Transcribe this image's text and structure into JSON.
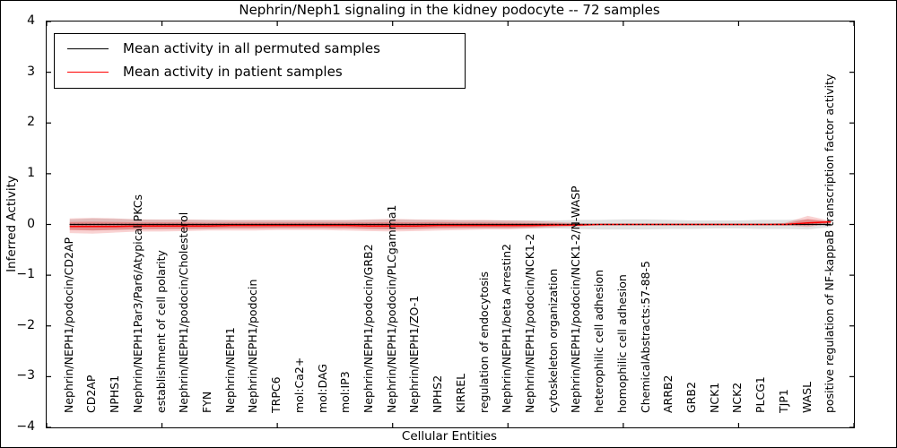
{
  "title": "Nephrin/Neph1 signaling in the kidney podocyte -- 72 samples",
  "legend": {
    "position": "upper left",
    "entries": [
      {
        "label": "Mean activity in all permuted samples",
        "color": "#000000"
      },
      {
        "label": "Mean activity in patient samples",
        "color": "#ff0000"
      }
    ]
  },
  "chart_data": {
    "type": "line",
    "title": "Nephrin/Neph1 signaling in the kidney podocyte -- 72 samples",
    "xlabel": "Cellular Entities",
    "ylabel": "Inferred Activity",
    "xlim": [
      0,
      35
    ],
    "ylim": [
      -4,
      4
    ],
    "grid": false,
    "xticks": [
      0,
      5,
      10,
      15,
      20,
      25,
      30,
      35
    ],
    "yticks": [
      {
        "label": "4",
        "value": 4
      },
      {
        "label": "3",
        "value": 3
      },
      {
        "label": "2",
        "value": 2
      },
      {
        "label": "1",
        "value": 1
      },
      {
        "label": "0",
        "value": 0
      },
      {
        "label": "−1",
        "value": -1
      },
      {
        "label": "−2",
        "value": -2
      },
      {
        "label": "−3",
        "value": -3
      },
      {
        "label": "−4",
        "value": -4
      }
    ],
    "zero_line": {
      "style": "dotted",
      "color": "#000000",
      "y": 0
    },
    "categories": [
      "Nephrin/NEPH1/podocin/CD2AP",
      "CD2AP",
      "NPHS1",
      "Nephrin/NEPH1Par3/Par6/Atypical PKCs",
      "establishment of cell polarity",
      "Nephrin/NEPH1/podocin/Cholesterol",
      "FYN",
      "Nephrin/NEPH1",
      "Nephrin/NEPH1/podocin",
      "TRPC6",
      "mol:Ca2+",
      "mol:DAG",
      "mol:IP3",
      "Nephrin/NEPH1/podocin/GRB2",
      "Nephrin/NEPH1/podocin/PLCgamma1",
      "Nephrin/NEPH1/ZO-1",
      "NPHS2",
      "KIRREL",
      "regulation of endocytosis",
      "Nephrin/NEPH1/beta Arrestin2",
      "Nephrin/NEPH1/podocin/NCK1-2",
      "cytoskeleton organization",
      "Nephrin/NEPH1/podocin/NCK1-2/N-WASP",
      "heterophilic cell adhesion",
      "homophilic cell adhesion",
      "ChemicalAbstracts:57-88-5",
      "ARRB2",
      "GRB2",
      "NCK1",
      "NCK2",
      "PLCG1",
      "TJP1",
      "WASL",
      "positive regulation of NF-kappaB transcription factor activity"
    ],
    "series": [
      {
        "name": "Mean activity in all permuted samples",
        "color": "#000000",
        "values": [
          0,
          0,
          0,
          0,
          0,
          0,
          0,
          0,
          0,
          0,
          0,
          0,
          0,
          0,
          0,
          0,
          0,
          0,
          0,
          0,
          0,
          0,
          0,
          0,
          0,
          0,
          0,
          0,
          0,
          0,
          0,
          0,
          0,
          0
        ]
      },
      {
        "name": "Mean activity in patient samples",
        "color": "#ff0000",
        "values": [
          -0.04,
          -0.04,
          -0.04,
          -0.03,
          -0.03,
          -0.03,
          -0.03,
          -0.02,
          -0.02,
          -0.02,
          -0.02,
          -0.02,
          -0.02,
          -0.03,
          -0.03,
          -0.03,
          -0.02,
          -0.02,
          -0.02,
          -0.02,
          -0.02,
          -0.01,
          -0.01,
          0.0,
          0.0,
          0.0,
          0.0,
          0.0,
          0.0,
          0.0,
          0.0,
          0.0,
          0.03,
          0.05
        ]
      }
    ],
    "bands": {
      "permuted_range": {
        "color": "rgba(120,120,120,0.22)",
        "upper": [
          0.1,
          0.12,
          0.11,
          0.1,
          0.09,
          0.09,
          0.09,
          0.08,
          0.08,
          0.08,
          0.08,
          0.08,
          0.08,
          0.09,
          0.1,
          0.09,
          0.08,
          0.08,
          0.08,
          0.08,
          0.08,
          0.08,
          0.09,
          0.09,
          0.1,
          0.1,
          0.09,
          0.08,
          0.08,
          0.08,
          0.09,
          0.09,
          0.1,
          0.05
        ],
        "lower": [
          -0.1,
          -0.12,
          -0.11,
          -0.1,
          -0.09,
          -0.09,
          -0.09,
          -0.08,
          -0.08,
          -0.08,
          -0.08,
          -0.08,
          -0.08,
          -0.09,
          -0.1,
          -0.09,
          -0.08,
          -0.08,
          -0.08,
          -0.08,
          -0.08,
          -0.08,
          -0.09,
          -0.1,
          -0.1,
          -0.1,
          -0.09,
          -0.09,
          -0.08,
          -0.08,
          -0.09,
          -0.09,
          -0.1,
          -0.05
        ]
      },
      "patient_range": {
        "color_outer": "rgba(227,30,30,0.20)",
        "color_inner": "rgba(227,30,30,0.30)",
        "upper": [
          0.12,
          0.13,
          0.12,
          0.1,
          0.1,
          0.1,
          0.09,
          0.09,
          0.09,
          0.09,
          0.09,
          0.09,
          0.09,
          0.1,
          0.11,
          0.1,
          0.1,
          0.09,
          0.09,
          0.08,
          0.07,
          0.05,
          0.03,
          0.01,
          0.01,
          0.01,
          0.01,
          0.01,
          0.01,
          0.01,
          0.01,
          0.03,
          0.17,
          0.07
        ],
        "lower": [
          -0.17,
          -0.18,
          -0.16,
          -0.14,
          -0.14,
          -0.13,
          -0.12,
          -0.12,
          -0.12,
          -0.11,
          -0.11,
          -0.11,
          -0.12,
          -0.13,
          -0.14,
          -0.13,
          -0.12,
          -0.11,
          -0.1,
          -0.1,
          -0.08,
          -0.06,
          -0.04,
          -0.01,
          -0.01,
          -0.01,
          -0.01,
          -0.01,
          -0.01,
          -0.01,
          -0.01,
          -0.02,
          -0.05,
          0.02
        ]
      }
    }
  }
}
